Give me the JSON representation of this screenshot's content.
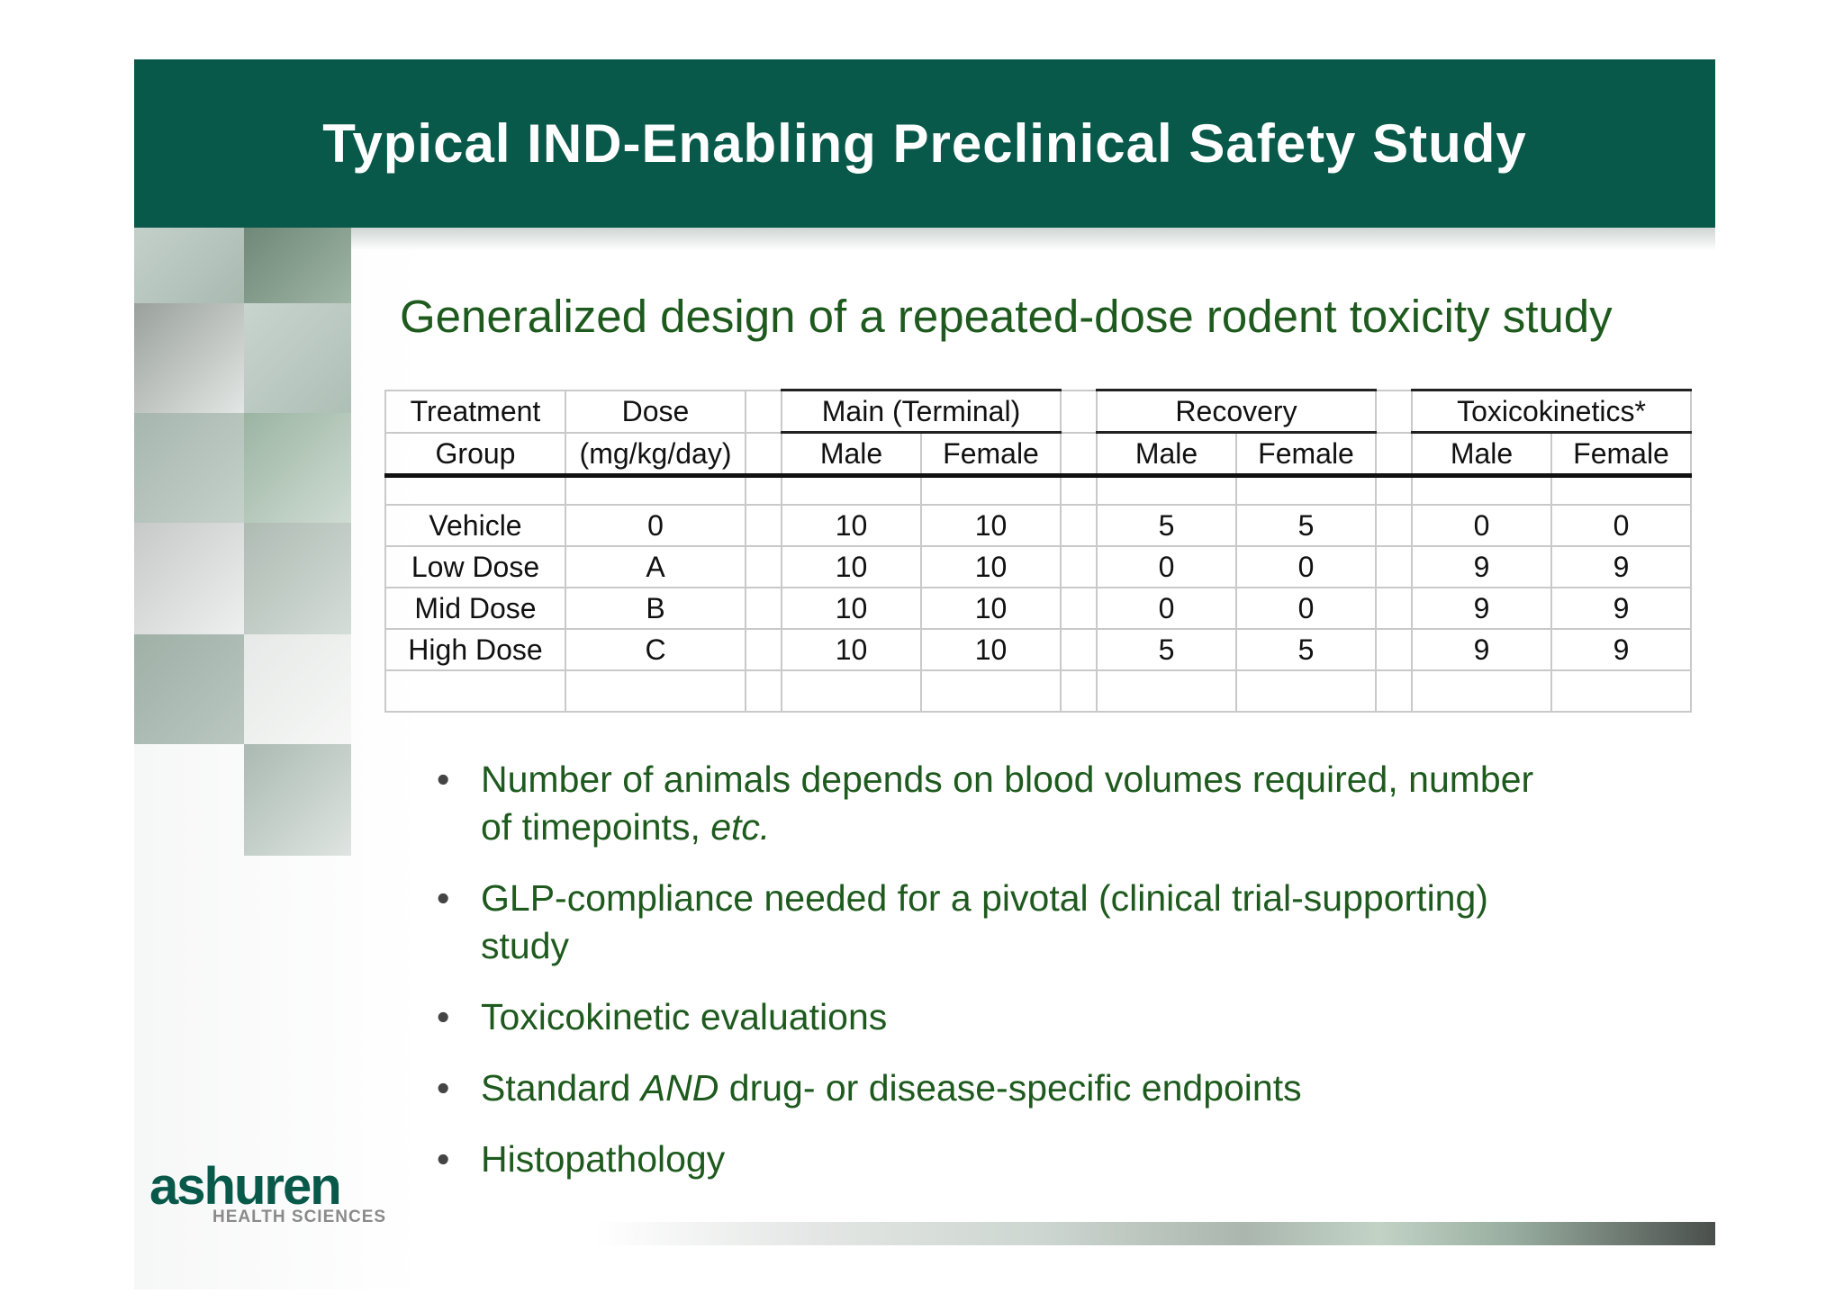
{
  "header": {
    "title": "Typical IND-Enabling Preclinical Safety Study"
  },
  "subtitle": "Generalized design of a repeated-dose rodent toxicity study",
  "table": {
    "col_treatment": [
      "Treatment",
      "Group"
    ],
    "col_dose": [
      "Dose",
      "(mg/kg/day)"
    ],
    "groups": [
      "Main (Terminal)",
      "Recovery",
      "Toxicokinetics*"
    ],
    "sub": [
      "Male",
      "Female"
    ],
    "rows": [
      {
        "group": "Vehicle",
        "dose": "0",
        "vals": [
          "10",
          "10",
          "5",
          "5",
          "0",
          "0"
        ]
      },
      {
        "group": "Low Dose",
        "dose": "A",
        "vals": [
          "10",
          "10",
          "0",
          "0",
          "9",
          "9"
        ]
      },
      {
        "group": "Mid Dose",
        "dose": "B",
        "vals": [
          "10",
          "10",
          "0",
          "0",
          "9",
          "9"
        ]
      },
      {
        "group": "High Dose",
        "dose": "C",
        "vals": [
          "10",
          "10",
          "5",
          "5",
          "9",
          "9"
        ]
      }
    ]
  },
  "bullets": {
    "b1": {
      "a": "Number of animals depends on blood volumes required, number",
      "b": "of timepoints, ",
      "c": "etc."
    },
    "b2": {
      "a": "GLP-compliance needed for a pivotal (clinical trial-supporting)",
      "b": "study"
    },
    "b3": "Toxicokinetic evaluations",
    "b4": {
      "a": "Standard ",
      "b": "AND",
      "c": " drug- or disease-specific endpoints"
    },
    "b5": "Histopathology"
  },
  "logo": {
    "word": "ashuren",
    "sub": "HEALTH SCIENCES"
  },
  "colors": {
    "brand": "#08594a",
    "text_green": "#1e5a1e"
  }
}
